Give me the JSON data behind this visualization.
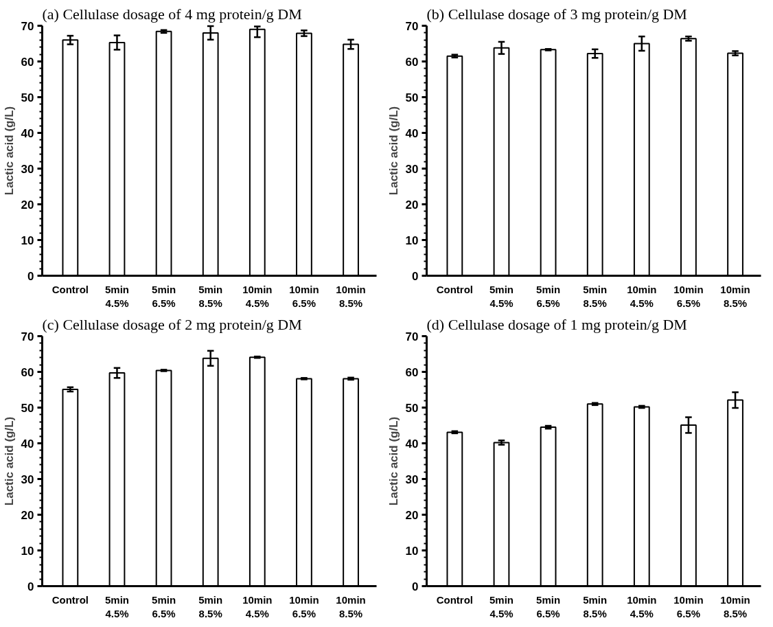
{
  "chart_data": [
    {
      "type": "bar",
      "title": "(a) Cellulase dosage of 4 mg protein/g DM",
      "ylabel": "Lactic acid (g/L)",
      "categories": [
        "Control",
        "5min\n4.5%",
        "5min\n6.5%",
        "5min\n8.5%",
        "10min\n4.5%",
        "10min\n6.5%",
        "10min\n8.5%"
      ],
      "values": [
        66.0,
        65.3,
        68.4,
        68.0,
        69.0,
        67.9,
        64.8
      ],
      "errors": [
        1.2,
        2.0,
        0.4,
        1.9,
        [
          66.8,
          69.8
        ],
        0.8,
        1.3
      ],
      "color": "#ffffff",
      "ylim": [
        0,
        70
      ],
      "yticks": [
        0,
        10,
        20,
        30,
        40,
        50,
        60,
        70
      ],
      "grid": false
    },
    {
      "type": "bar",
      "title": "(b) Cellulase dosage of 3 mg protein/g DM",
      "ylabel": "Lactic acid (g/L)",
      "categories": [
        "Control",
        "5min\n4.5%",
        "5min\n6.5%",
        "5min\n8.5%",
        "10min\n4.5%",
        "10min\n6.5%",
        "10min\n8.5%"
      ],
      "values": [
        61.5,
        63.8,
        63.3,
        62.2,
        65.0,
        66.4,
        62.3
      ],
      "errors": [
        0.4,
        1.7,
        0.2,
        1.2,
        2.0,
        0.6,
        0.6
      ],
      "color": "#ffffff",
      "ylim": [
        0,
        70
      ],
      "yticks": [
        0,
        10,
        20,
        30,
        40,
        50,
        60,
        70
      ],
      "grid": false
    },
    {
      "type": "bar",
      "title": "(c) Cellulase dosage of 2 mg protein/g DM",
      "ylabel": "Lactic acid (g/L)",
      "categories": [
        "Control",
        "5min\n4.5%",
        "5min\n6.5%",
        "5min\n8.5%",
        "10min\n4.5%",
        "10min\n6.5%",
        "10min\n8.5%"
      ],
      "values": [
        55.1,
        59.7,
        60.4,
        63.8,
        64.1,
        58.1,
        58.1
      ],
      "errors": [
        0.6,
        1.4,
        0.2,
        2.1,
        0.2,
        0.2,
        0.3
      ],
      "color": "#ffffff",
      "ylim": [
        0,
        70
      ],
      "yticks": [
        0,
        10,
        20,
        30,
        40,
        50,
        60,
        70
      ],
      "grid": false
    },
    {
      "type": "bar",
      "title": "(d) Cellulase dosage of 1 mg protein/g DM",
      "ylabel": "Lactic acid (g/L)",
      "categories": [
        "Control",
        "5min\n4.5%",
        "5min\n6.5%",
        "5min\n8.5%",
        "10min\n4.5%",
        "10min\n6.5%",
        "10min\n8.5%"
      ],
      "values": [
        43.1,
        40.2,
        44.5,
        51.0,
        50.2,
        45.1,
        52.1
      ],
      "errors": [
        0.3,
        0.6,
        0.4,
        0.3,
        0.3,
        2.2,
        2.2
      ],
      "color": "#ffffff",
      "ylim": [
        0,
        70
      ],
      "yticks": [
        0,
        10,
        20,
        30,
        40,
        50,
        60,
        70
      ],
      "grid": false
    }
  ]
}
